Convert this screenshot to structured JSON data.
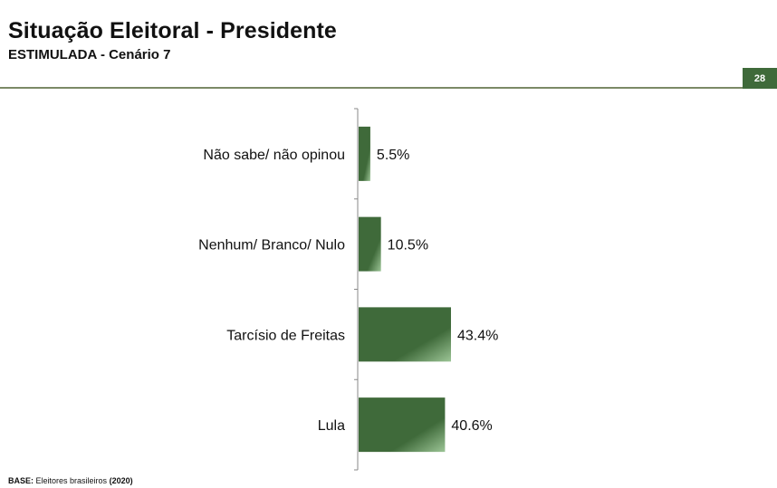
{
  "header": {
    "title": "Situação Eleitoral - Presidente",
    "subtitle": "ESTIMULADA - Cenário 7",
    "page_number": "28"
  },
  "footer": {
    "base_label": "BASE:",
    "base_text": "Eleitores brasileiros",
    "base_year": "(2020)"
  },
  "colors": {
    "bar_dark": "#3f6a3a",
    "bar_light": "#9cc596",
    "accent": "#3f6a3a",
    "rule": "#7b8a66"
  },
  "chart_data": {
    "type": "bar",
    "orientation": "horizontal",
    "categories": [
      "Não sabe/ não opinou",
      "Nenhum/ Branco/ Nulo",
      "Tarcísio de Freitas",
      "Lula"
    ],
    "values": [
      5.5,
      10.5,
      43.4,
      40.6
    ],
    "value_labels": [
      "5.5%",
      "10.5%",
      "43.4%",
      "40.6%"
    ],
    "xlim": [
      0,
      100
    ],
    "title": "",
    "xlabel": "",
    "ylabel": "",
    "grid": false,
    "legend": "none"
  }
}
